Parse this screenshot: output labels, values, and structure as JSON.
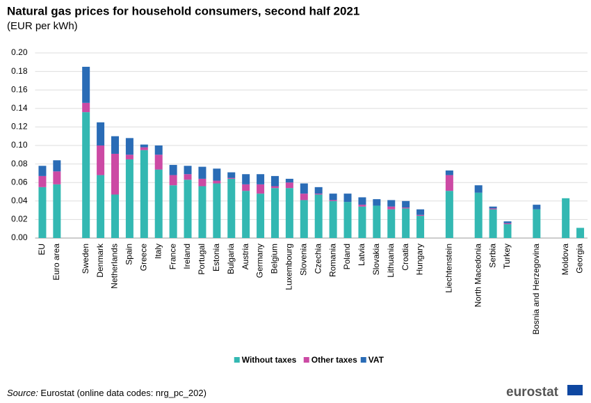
{
  "chart_data": {
    "type": "stacked_bar",
    "title": "Natural gas prices for household consumers, second half 2021",
    "subtitle": "(EUR per kWh)",
    "categories": [
      "EU",
      "Euro area",
      null,
      "Sweden",
      "Denmark",
      "Netherlands",
      "Spain",
      "Greece",
      "Italy",
      "France",
      "Ireland",
      "Portugal",
      "Estonia",
      "Bulgaria",
      "Austria",
      "Germany",
      "Belgium",
      "Luxembourg",
      "Slovenia",
      "Czechia",
      "Romania",
      "Poland",
      "Latvia",
      "Slovakia",
      "Lithuania",
      "Croatia",
      "Hungary",
      null,
      "Liechtenstein",
      null,
      "North Macedonia",
      "Serbia",
      "Turkey",
      null,
      "Bosnia and Herzegovina",
      null,
      "Moldova",
      "Georgia"
    ],
    "series": [
      {
        "name": "Without taxes",
        "color": "#33b8b2",
        "values": [
          0.055,
          0.058,
          null,
          0.136,
          0.068,
          0.047,
          0.085,
          0.095,
          0.074,
          0.057,
          0.063,
          0.056,
          0.059,
          0.064,
          0.051,
          0.048,
          0.054,
          0.054,
          0.041,
          0.047,
          0.04,
          0.039,
          0.034,
          0.035,
          0.031,
          0.032,
          0.024,
          null,
          0.051,
          null,
          0.049,
          0.031,
          0.015,
          null,
          0.031,
          null,
          0.043,
          0.011
        ]
      },
      {
        "name": "Other taxes",
        "color": "#cc4aa4",
        "values": [
          0.012,
          0.014,
          null,
          0.01,
          0.032,
          0.044,
          0.005,
          0.003,
          0.016,
          0.011,
          0.006,
          0.008,
          0.003,
          0.001,
          0.007,
          0.01,
          0.002,
          0.006,
          0.007,
          0.001,
          0.001,
          0,
          0.002,
          0,
          0.003,
          0.001,
          0.001,
          null,
          0.017,
          null,
          0,
          0.001,
          0.001,
          null,
          0,
          null,
          0,
          0
        ]
      },
      {
        "name": "VAT",
        "color": "#2a6cb6",
        "values": [
          0.011,
          0.012,
          null,
          0.039,
          0.025,
          0.019,
          0.018,
          0.003,
          0.01,
          0.011,
          0.009,
          0.013,
          0.013,
          0.006,
          0.011,
          0.011,
          0.011,
          0.004,
          0.011,
          0.007,
          0.007,
          0.009,
          0.008,
          0.007,
          0.007,
          0.007,
          0.006,
          null,
          0.005,
          null,
          0.008,
          0.002,
          0.002,
          null,
          0.005,
          null,
          0,
          0
        ]
      }
    ],
    "ylim": [
      0,
      0.2
    ],
    "yticks": [
      {
        "value": 0,
        "label": "0.00"
      },
      {
        "value": 0.02,
        "label": "0.02"
      },
      {
        "value": 0.04,
        "label": "0.04"
      },
      {
        "value": 0.06,
        "label": "0.06"
      },
      {
        "value": 0.08,
        "label": "0.08"
      },
      {
        "value": 0.1,
        "label": "0.10"
      },
      {
        "value": 0.12,
        "label": "0.12"
      },
      {
        "value": 0.14,
        "label": "0.14"
      },
      {
        "value": 0.16,
        "label": "0.16"
      },
      {
        "value": 0.18,
        "label": "0.18"
      },
      {
        "value": 0.2,
        "label": "0.20"
      }
    ],
    "grid": true,
    "legend": "bottom"
  },
  "footer": {
    "source_label": "Source:",
    "source_text": " Eurostat (online data codes: nrg_pc_202)",
    "logo": "eurostat"
  }
}
